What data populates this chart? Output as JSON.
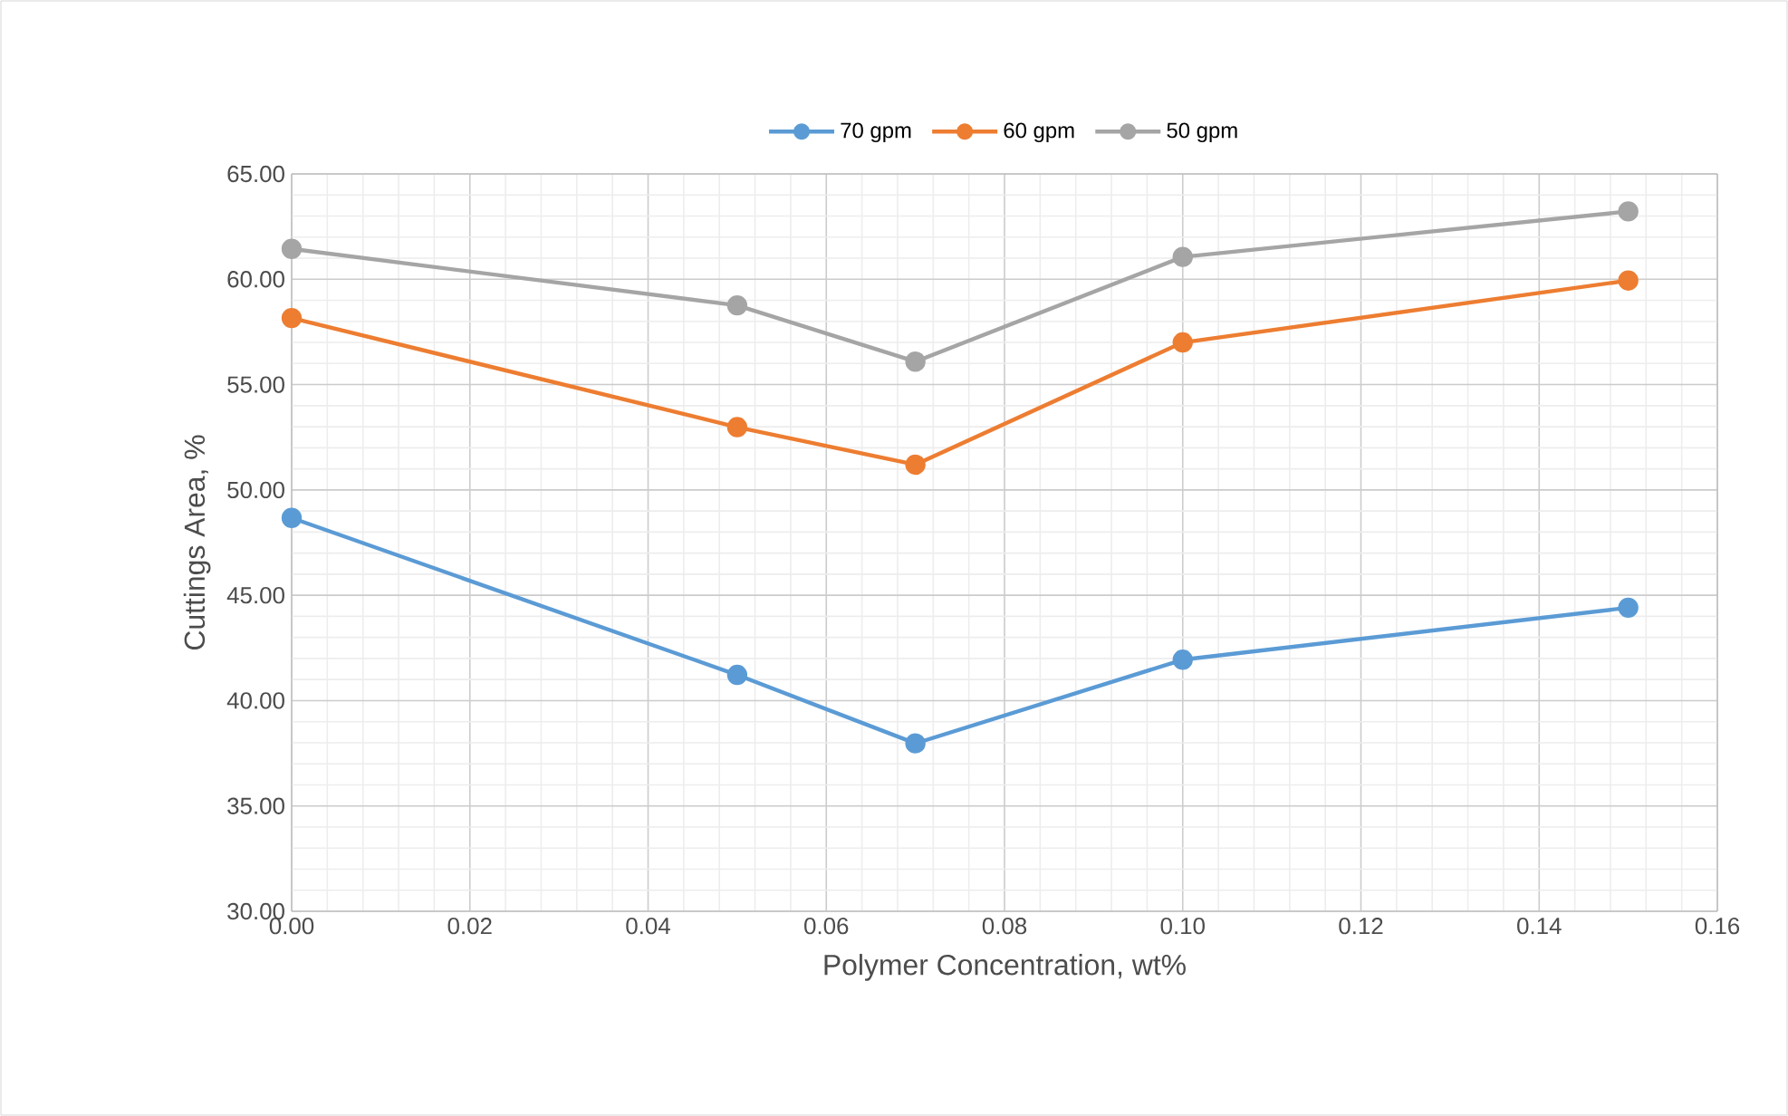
{
  "chart_data": {
    "type": "line",
    "xlabel": "Polymer Concentration, wt%",
    "ylabel": "Cuttings Area, %",
    "x": [
      0,
      0.05,
      0.07,
      0.1,
      0.15
    ],
    "series": [
      {
        "name": "70 gpm",
        "color": "#5b9bd5",
        "values": [
          48.67,
          41.22,
          37.97,
          41.94,
          44.41
        ]
      },
      {
        "name": "60 gpm",
        "color": "#ed7d31",
        "values": [
          58.16,
          52.98,
          51.2,
          57.0,
          59.94
        ]
      },
      {
        "name": "50 gpm",
        "color": "#a5a5a5",
        "values": [
          61.44,
          58.76,
          56.09,
          61.06,
          63.22
        ]
      }
    ],
    "xlim": [
      0,
      0.16
    ],
    "xticks": [
      {
        "value": 0,
        "label": "0.00"
      },
      {
        "value": 0.02,
        "label": "0.02"
      },
      {
        "value": 0.04,
        "label": "0.04"
      },
      {
        "value": 0.06,
        "label": "0.06"
      },
      {
        "value": 0.08,
        "label": "0.08"
      },
      {
        "value": 0.1,
        "label": "0.10"
      },
      {
        "value": 0.12,
        "label": "0.12"
      },
      {
        "value": 0.14,
        "label": "0.14"
      },
      {
        "value": 0.16,
        "label": "0.16"
      }
    ],
    "ylim": [
      30,
      65
    ],
    "yticks": [
      {
        "value": 30,
        "label": "30.00"
      },
      {
        "value": 35,
        "label": "35.00"
      },
      {
        "value": 40,
        "label": "40.00"
      },
      {
        "value": 45,
        "label": "45.00"
      },
      {
        "value": 50,
        "label": "50.00"
      },
      {
        "value": 55,
        "label": "55.00"
      },
      {
        "value": 60,
        "label": "60.00"
      },
      {
        "value": 65,
        "label": "65.00"
      }
    ],
    "grid": true,
    "legend": "top",
    "marker": "circle",
    "line_style": "solid"
  }
}
